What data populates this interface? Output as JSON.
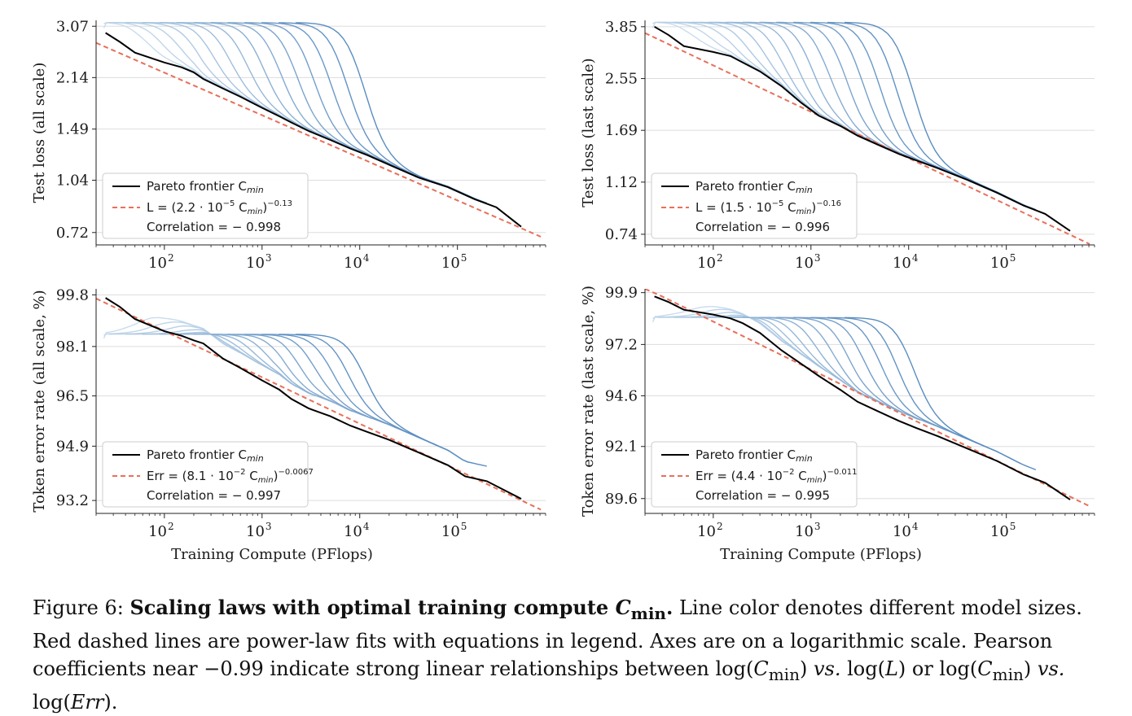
{
  "colors": {
    "pareto": "#000000",
    "fit": "#e8705a",
    "grid": "#dddddd",
    "series_light": "#c9dcee",
    "series_dark": "#5a8dc0"
  },
  "chart_data": [
    {
      "type": "line",
      "ylabel": "Test loss (all scale)",
      "xlabel": "",
      "xscale": "log",
      "yscale": "log",
      "xlim": [
        20,
        800000
      ],
      "ylim": [
        0.66,
        3.2
      ],
      "xticks": [
        100,
        1000,
        10000,
        100000
      ],
      "xtick_labels": [
        "10",
        "10",
        "10",
        "10"
      ],
      "xtick_exponents": [
        "2",
        "3",
        "4",
        "5"
      ],
      "yticks": [
        3.07,
        2.14,
        1.49,
        1.04,
        0.72
      ],
      "ytick_labels": [
        "3.07",
        "2.14",
        "1.49",
        "1.04",
        "0.72"
      ],
      "y_top_value": 3.2,
      "fit": {
        "a": 2.2e-05,
        "b": -0.13
      },
      "legend": {
        "pareto_label": "Pareto frontier C",
        "pareto_sub": "min",
        "fit_prefix": "L = (2.2 · 10",
        "fit_exp_inner": "−5",
        "fit_mid": " C",
        "fit_sub": "min",
        "fit_close": ")",
        "fit_exp_outer": "−0.13",
        "corr_label": "Correlation = − 0.998"
      },
      "pareto": [
        [
          25,
          2.93
        ],
        [
          35,
          2.75
        ],
        [
          50,
          2.55
        ],
        [
          100,
          2.38
        ],
        [
          150,
          2.3
        ],
        [
          200,
          2.22
        ],
        [
          250,
          2.12
        ],
        [
          400,
          1.98
        ],
        [
          600,
          1.87
        ],
        [
          1000,
          1.73
        ],
        [
          1500,
          1.63
        ],
        [
          2000,
          1.56
        ],
        [
          3000,
          1.47
        ],
        [
          5000,
          1.38
        ],
        [
          8000,
          1.3
        ],
        [
          12000,
          1.24
        ],
        [
          20000,
          1.16
        ],
        [
          40000,
          1.06
        ],
        [
          80000,
          0.99
        ],
        [
          150000,
          0.91
        ],
        [
          250000,
          0.86
        ],
        [
          450000,
          0.75
        ]
      ]
    },
    {
      "type": "line",
      "ylabel": "Test loss (last scale)",
      "xlabel": "",
      "xscale": "log",
      "yscale": "log",
      "xlim": [
        20,
        800000
      ],
      "ylim": [
        0.68,
        4.05
      ],
      "xticks": [
        100,
        1000,
        10000,
        100000
      ],
      "xtick_labels": [
        "10",
        "10",
        "10",
        "10"
      ],
      "xtick_exponents": [
        "2",
        "3",
        "4",
        "5"
      ],
      "yticks": [
        3.85,
        2.55,
        1.69,
        1.12,
        0.74
      ],
      "ytick_labels": [
        "3.85",
        "2.55",
        "1.69",
        "1.12",
        "0.74"
      ],
      "y_top_value": 4.05,
      "fit": {
        "a": 1.5e-05,
        "b": -0.16
      },
      "legend": {
        "pareto_label": "Pareto frontier C",
        "pareto_sub": "min",
        "fit_prefix": "L = (1.5 · 10",
        "fit_exp_inner": "−5",
        "fit_mid": " C",
        "fit_sub": "min",
        "fit_close": ")",
        "fit_exp_outer": "−0.16",
        "corr_label": "Correlation = − 0.996"
      },
      "pareto": [
        [
          25,
          3.85
        ],
        [
          35,
          3.6
        ],
        [
          50,
          3.3
        ],
        [
          100,
          3.15
        ],
        [
          150,
          3.05
        ],
        [
          200,
          2.9
        ],
        [
          300,
          2.7
        ],
        [
          500,
          2.4
        ],
        [
          800,
          2.1
        ],
        [
          1200,
          1.9
        ],
        [
          2000,
          1.75
        ],
        [
          3000,
          1.62
        ],
        [
          5000,
          1.5
        ],
        [
          8000,
          1.4
        ],
        [
          12000,
          1.33
        ],
        [
          20000,
          1.25
        ],
        [
          40000,
          1.14
        ],
        [
          80000,
          1.03
        ],
        [
          150000,
          0.93
        ],
        [
          250000,
          0.87
        ],
        [
          450000,
          0.76
        ]
      ]
    },
    {
      "type": "line",
      "ylabel": "Token error rate (all scale, %)",
      "xlabel": "Training Compute (PFlops)",
      "xscale": "log",
      "yscale": "log",
      "xlim": [
        20,
        800000
      ],
      "ylim": [
        92.8,
        100.0
      ],
      "xticks": [
        100,
        1000,
        10000,
        100000
      ],
      "xtick_labels": [
        "10",
        "10",
        "10",
        "10"
      ],
      "xtick_exponents": [
        "2",
        "3",
        "4",
        "5"
      ],
      "yticks": [
        99.8,
        98.1,
        96.5,
        94.9,
        93.2
      ],
      "ytick_labels": [
        "99.8",
        "98.1",
        "96.5",
        "94.9",
        "93.2"
      ],
      "y_top_value": 100.0,
      "fit": {
        "a": 0.081,
        "b": -0.0067
      },
      "legend": {
        "pareto_label": "Pareto frontier C",
        "pareto_sub": "min",
        "fit_prefix": "Err = (8.1 · 10",
        "fit_exp_inner": "−2",
        "fit_mid": " C",
        "fit_sub": "min",
        "fit_close": ")",
        "fit_exp_outer": "−0.0067",
        "corr_label": "Correlation = − 0.997"
      },
      "pareto": [
        [
          25,
          99.7
        ],
        [
          35,
          99.4
        ],
        [
          50,
          99.0
        ],
        [
          100,
          98.6
        ],
        [
          150,
          98.45
        ],
        [
          200,
          98.3
        ],
        [
          250,
          98.2
        ],
        [
          400,
          97.7
        ],
        [
          600,
          97.4
        ],
        [
          1000,
          97.0
        ],
        [
          1500,
          96.7
        ],
        [
          2000,
          96.4
        ],
        [
          3000,
          96.1
        ],
        [
          5000,
          95.85
        ],
        [
          8000,
          95.55
        ],
        [
          12000,
          95.35
        ],
        [
          20000,
          95.1
        ],
        [
          40000,
          94.7
        ],
        [
          80000,
          94.3
        ],
        [
          120000,
          93.95
        ],
        [
          200000,
          93.8
        ],
        [
          450000,
          93.25
        ]
      ]
    },
    {
      "type": "line",
      "ylabel": "Token error rate (last scale, %)",
      "xlabel": "Training Compute (PFlops)",
      "xscale": "log",
      "yscale": "log",
      "xlim": [
        20,
        800000
      ],
      "ylim": [
        88.9,
        100.1
      ],
      "xticks": [
        100,
        1000,
        10000,
        100000
      ],
      "xtick_labels": [
        "10",
        "10",
        "10",
        "10"
      ],
      "xtick_exponents": [
        "2",
        "3",
        "4",
        "5"
      ],
      "yticks": [
        99.9,
        97.2,
        94.6,
        92.1,
        89.6
      ],
      "ytick_labels": [
        "99.9",
        "97.2",
        "94.6",
        "92.1",
        "89.6"
      ],
      "y_top_value": 100.1,
      "fit": {
        "a": 0.044,
        "b": -0.011
      },
      "legend": {
        "pareto_label": "Pareto frontier C",
        "pareto_sub": "min",
        "fit_prefix": "Err = (4.4 · 10",
        "fit_exp_inner": "−2",
        "fit_mid": " C",
        "fit_sub": "min",
        "fit_close": ")",
        "fit_exp_outer": "−0.011",
        "corr_label": "Correlation = − 0.995"
      },
      "pareto": [
        [
          25,
          99.7
        ],
        [
          35,
          99.4
        ],
        [
          50,
          99.0
        ],
        [
          100,
          98.75
        ],
        [
          150,
          98.55
        ],
        [
          200,
          98.3
        ],
        [
          300,
          97.8
        ],
        [
          500,
          96.9
        ],
        [
          800,
          96.2
        ],
        [
          1200,
          95.6
        ],
        [
          2000,
          94.9
        ],
        [
          3000,
          94.3
        ],
        [
          5000,
          93.8
        ],
        [
          8000,
          93.35
        ],
        [
          12000,
          93.0
        ],
        [
          20000,
          92.6
        ],
        [
          40000,
          92.0
        ],
        [
          80000,
          91.4
        ],
        [
          150000,
          90.75
        ],
        [
          250000,
          90.35
        ],
        [
          450000,
          89.55
        ]
      ]
    }
  ],
  "caption": {
    "figure_label": "Figure 6:",
    "bold_title": "Scaling laws with optimal training compute",
    "bold_var": "C",
    "bold_sub": "min",
    "bold_period": ".",
    "sentence1": " Line color denotes different model sizes. Red dashed lines are power-law fits with equations in legend. Axes are on a logarithmic scale. Pearson coefficients near −0.99 indicate strong linear relationships between log(",
    "var_c": "C",
    "sub_min": "min",
    "part_vs1": ") ",
    "vs": "vs.",
    "part_logL": " log(",
    "var_L": "L",
    "part_or": ") or log(",
    "var_c2": "C",
    "sub_min2": "min",
    "part_vs2": ") ",
    "vs2": "vs.",
    "part_logErr": " log(",
    "var_err": "Err",
    "part_end": ")."
  }
}
